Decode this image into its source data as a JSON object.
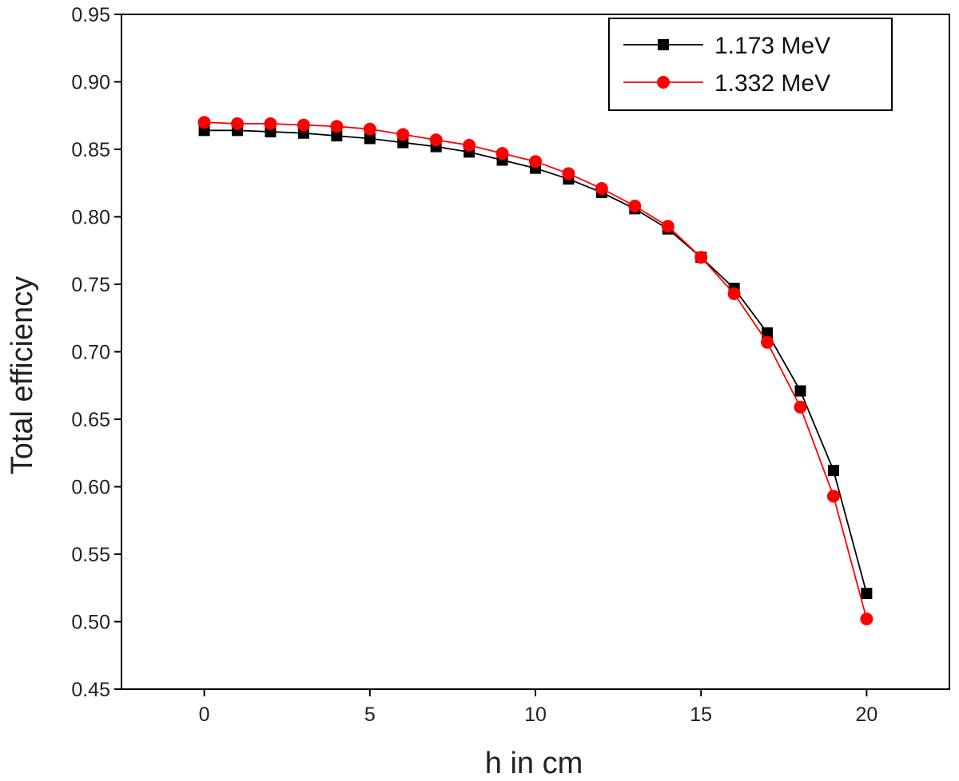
{
  "chart_data": {
    "type": "line",
    "title": "",
    "xlabel": "h in cm",
    "ylabel": "Total efficiency",
    "xlim": [
      -2.5,
      22.5
    ],
    "ylim": [
      0.45,
      0.95
    ],
    "x_ticks": [
      0,
      5,
      10,
      15,
      20
    ],
    "x_tick_labels": [
      "0",
      "5",
      "10",
      "15",
      "20"
    ],
    "y_ticks": [
      0.45,
      0.5,
      0.55,
      0.6,
      0.65,
      0.7,
      0.75,
      0.8,
      0.85,
      0.9,
      0.95
    ],
    "y_tick_labels": [
      "0.45",
      "0.50",
      "0.55",
      "0.60",
      "0.65",
      "0.70",
      "0.75",
      "0.80",
      "0.85",
      "0.90",
      "0.95"
    ],
    "grid": false,
    "legend_position": "top-right",
    "x": [
      0,
      1,
      2,
      3,
      4,
      5,
      6,
      7,
      8,
      9,
      10,
      11,
      12,
      13,
      14,
      15,
      16,
      17,
      18,
      19,
      20
    ],
    "series": [
      {
        "name": "1.173 MeV",
        "color": "#000000",
        "marker": "square",
        "values": [
          0.864,
          0.864,
          0.863,
          0.862,
          0.86,
          0.858,
          0.855,
          0.852,
          0.848,
          0.842,
          0.836,
          0.828,
          0.818,
          0.806,
          0.791,
          0.77,
          0.747,
          0.714,
          0.671,
          0.612,
          0.521
        ]
      },
      {
        "name": "1.332 MeV",
        "color": "#ff0000",
        "marker": "circle",
        "values": [
          0.87,
          0.869,
          0.869,
          0.868,
          0.867,
          0.865,
          0.861,
          0.857,
          0.853,
          0.847,
          0.841,
          0.832,
          0.821,
          0.808,
          0.793,
          0.77,
          0.743,
          0.707,
          0.659,
          0.593,
          0.502
        ]
      }
    ]
  }
}
